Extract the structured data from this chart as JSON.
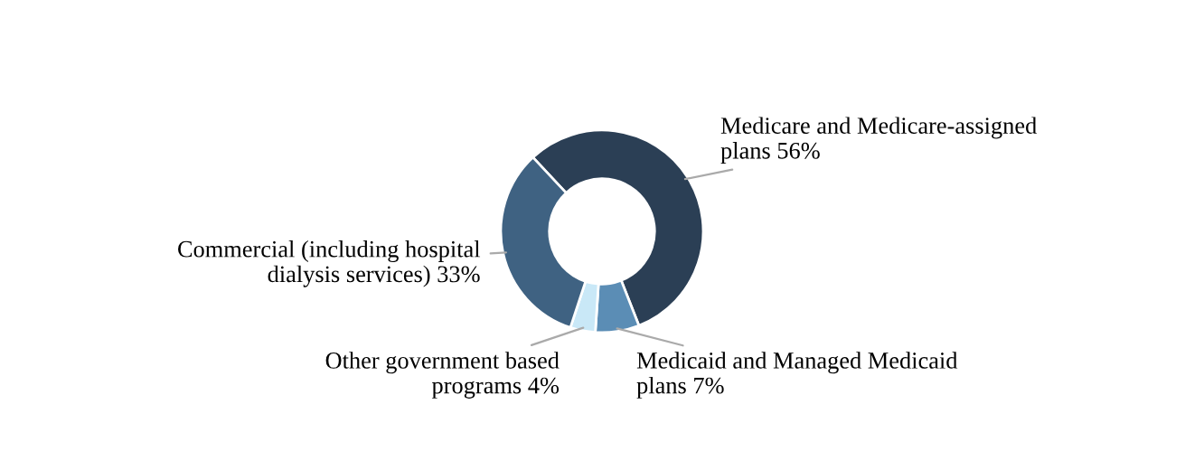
{
  "chart_data": {
    "type": "donut",
    "categories": [
      "Medicare and Medicare-assigned\nplans",
      "Medicaid and Managed Medicaid\nplans",
      "Other government based\nprograms",
      "Commercial (including hospital\ndialysis services)"
    ],
    "values": [
      56,
      7,
      4,
      33
    ],
    "value_labels": [
      "56%",
      "7%",
      "4%",
      "33%"
    ],
    "colors": [
      "#2b3f55",
      "#5b8db5",
      "#c9e8f7",
      "#3f6282"
    ]
  }
}
